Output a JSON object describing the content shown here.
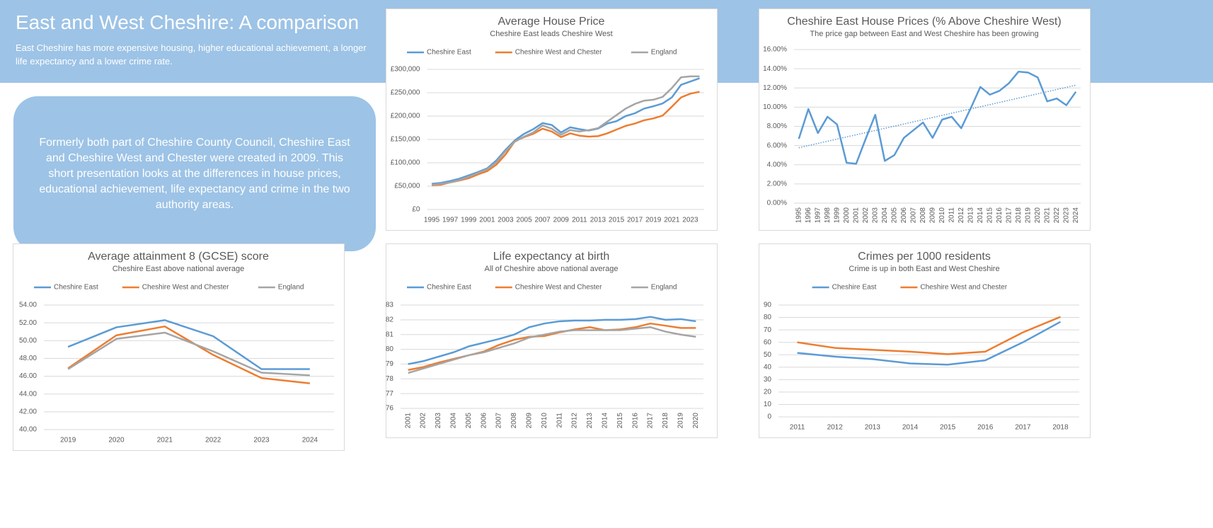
{
  "header": {
    "title": "East and West Cheshire: A comparison",
    "subtitle": "East Cheshire has more expensive housing, higher educational achievement, a longer life expectancy and a lower crime rate."
  },
  "intro": "Formerly both part of Cheshire County Council, Cheshire East and Cheshire West and Chester were created in 2009. This short presentation looks at the differences in house prices, educational achievement, life expectancy and crime in the two authority areas.",
  "chart_data": [
    {
      "type": "line",
      "title": "Average House Price",
      "subtitle": "Cheshire East leads Cheshire West",
      "legend": "top",
      "grid": true,
      "x": [
        1995,
        1996,
        1997,
        1998,
        1999,
        2000,
        2001,
        2002,
        2003,
        2004,
        2005,
        2006,
        2007,
        2008,
        2009,
        2010,
        2011,
        2012,
        2013,
        2014,
        2015,
        2016,
        2017,
        2018,
        2019,
        2020,
        2021,
        2022,
        2023,
        2024
      ],
      "xlim": [
        1994.5,
        2024.5
      ],
      "xticks": [
        1995,
        1997,
        1999,
        2001,
        2003,
        2005,
        2007,
        2009,
        2011,
        2013,
        2015,
        2017,
        2019,
        2021,
        2023
      ],
      "ylim": [
        0,
        300000
      ],
      "yticks": [
        {
          "value": 0,
          "label": "£0"
        },
        {
          "value": 50000,
          "label": "£50,000"
        },
        {
          "value": 100000,
          "label": "£100,000"
        },
        {
          "value": 150000,
          "label": "£150,000"
        },
        {
          "value": 200000,
          "label": "£200,000"
        },
        {
          "value": 250000,
          "label": "£250,000"
        },
        {
          "value": 300000,
          "label": "£300,000"
        }
      ],
      "series": [
        {
          "name": "Cheshire East",
          "color": "#5b9bd5",
          "values": [
            55000,
            57000,
            61000,
            66000,
            73000,
            80000,
            88000,
            105000,
            128000,
            148000,
            162000,
            172000,
            185000,
            181000,
            165000,
            176000,
            172000,
            169000,
            173000,
            184000,
            189000,
            200000,
            206000,
            216000,
            221000,
            227000,
            240000,
            267000,
            274000,
            281000
          ]
        },
        {
          "name": "Cheshire West and Chester",
          "color": "#ed7d31",
          "values": [
            52000,
            53000,
            58000,
            62000,
            67000,
            75000,
            82000,
            96000,
            118000,
            146000,
            155000,
            162000,
            173000,
            167000,
            155000,
            163000,
            158000,
            156000,
            157000,
            163000,
            171000,
            179000,
            184000,
            191000,
            195000,
            201000,
            220000,
            240000,
            248000,
            252000
          ]
        },
        {
          "name": "England",
          "color": "#a5a5a5",
          "values": [
            53000,
            55000,
            58000,
            63000,
            70000,
            78000,
            86000,
            101000,
            125000,
            145000,
            156000,
            165000,
            180000,
            173000,
            160000,
            170000,
            167000,
            170000,
            174000,
            188000,
            202000,
            216000,
            226000,
            233000,
            235000,
            241000,
            260000,
            283000,
            285000,
            285000
          ]
        }
      ]
    },
    {
      "type": "line",
      "title": "Cheshire East House Prices (% Above Cheshire West)",
      "subtitle": "The price gap between East and West Cheshire has been growing",
      "grid": true,
      "trendline": true,
      "color": "#5b9bd5",
      "x": [
        1995,
        1996,
        1997,
        1998,
        1999,
        2000,
        2001,
        2002,
        2003,
        2004,
        2005,
        2006,
        2007,
        2008,
        2009,
        2010,
        2011,
        2012,
        2013,
        2014,
        2015,
        2016,
        2017,
        2018,
        2019,
        2020,
        2021,
        2022,
        2023,
        2024
      ],
      "xlim": [
        1994.5,
        2024.5
      ],
      "xticks": [
        1995,
        1996,
        1997,
        1998,
        1999,
        2000,
        2001,
        2002,
        2003,
        2004,
        2005,
        2006,
        2007,
        2008,
        2009,
        2010,
        2011,
        2012,
        2013,
        2014,
        2015,
        2016,
        2017,
        2018,
        2019,
        2020,
        2021,
        2022,
        2023,
        2024
      ],
      "ylim": [
        0,
        16
      ],
      "yticks": [
        {
          "value": 0,
          "label": "0.00%"
        },
        {
          "value": 2,
          "label": "2.00%"
        },
        {
          "value": 4,
          "label": "4.00%"
        },
        {
          "value": 6,
          "label": "6.00%"
        },
        {
          "value": 8,
          "label": "8.00%"
        },
        {
          "value": 10,
          "label": "10.00%"
        },
        {
          "value": 12,
          "label": "12.00%"
        },
        {
          "value": 14,
          "label": "14.00%"
        },
        {
          "value": 16,
          "label": "16.00%"
        }
      ],
      "values": [
        6.7,
        9.8,
        7.3,
        9.0,
        8.2,
        4.2,
        4.1,
        6.7,
        9.2,
        4.4,
        5.0,
        6.8,
        7.6,
        8.4,
        6.8,
        8.7,
        9.0,
        7.8,
        9.9,
        12.1,
        11.3,
        11.7,
        12.5,
        13.7,
        13.6,
        13.1,
        10.6,
        10.9,
        10.2,
        11.6
      ]
    },
    {
      "type": "line",
      "title": "Average attainment 8 (GCSE) score",
      "subtitle": "Cheshire East above national average",
      "legend": "top",
      "grid": true,
      "x": [
        2019,
        2020,
        2021,
        2022,
        2023,
        2024
      ],
      "xlim": [
        2018.5,
        2024.5
      ],
      "xticks": [
        2019,
        2020,
        2021,
        2022,
        2023,
        2024
      ],
      "ylim": [
        40,
        54
      ],
      "yticks": [
        {
          "value": 40,
          "label": "40.00"
        },
        {
          "value": 42,
          "label": "42.00"
        },
        {
          "value": 44,
          "label": "44.00"
        },
        {
          "value": 46,
          "label": "46.00"
        },
        {
          "value": 48,
          "label": "48.00"
        },
        {
          "value": 50,
          "label": "50.00"
        },
        {
          "value": 52,
          "label": "52.00"
        },
        {
          "value": 54,
          "label": "54.00"
        }
      ],
      "series": [
        {
          "name": "Cheshire East",
          "color": "#5b9bd5",
          "values": [
            49.3,
            51.5,
            52.3,
            50.5,
            46.8,
            46.8
          ]
        },
        {
          "name": "Cheshire West and Chester",
          "color": "#ed7d31",
          "values": [
            46.9,
            50.6,
            51.6,
            48.4,
            45.8,
            45.2
          ]
        },
        {
          "name": "England",
          "color": "#a5a5a5",
          "values": [
            46.8,
            50.2,
            50.9,
            48.8,
            46.4,
            46.1
          ]
        }
      ]
    },
    {
      "type": "line",
      "title": "Life expectancy at birth",
      "subtitle": "All of Cheshire above national average",
      "legend": "top",
      "grid": true,
      "x": [
        2001,
        2002,
        2003,
        2004,
        2005,
        2006,
        2007,
        2008,
        2009,
        2010,
        2011,
        2012,
        2013,
        2014,
        2015,
        2016,
        2017,
        2018,
        2019,
        2020
      ],
      "xlim": [
        2000.5,
        2020.5
      ],
      "xticks": [
        2001,
        2002,
        2003,
        2004,
        2005,
        2006,
        2007,
        2008,
        2009,
        2010,
        2011,
        2012,
        2013,
        2014,
        2015,
        2016,
        2017,
        2018,
        2019,
        2020
      ],
      "ylim": [
        76,
        83
      ],
      "yticks": [
        76,
        77,
        78,
        79,
        80,
        81,
        82,
        83
      ],
      "series": [
        {
          "name": "Cheshire East",
          "color": "#5b9bd5",
          "values": [
            79.0,
            79.2,
            79.5,
            79.8,
            80.2,
            80.45,
            80.7,
            81.0,
            81.5,
            81.75,
            81.9,
            81.95,
            81.95,
            82.0,
            82.0,
            82.05,
            82.2,
            82.0,
            82.05,
            81.9
          ]
        },
        {
          "name": "Cheshire West and Chester",
          "color": "#ed7d31",
          "values": [
            78.6,
            78.8,
            79.1,
            79.35,
            79.6,
            79.85,
            80.3,
            80.65,
            80.85,
            80.9,
            81.15,
            81.35,
            81.5,
            81.3,
            81.35,
            81.5,
            81.75,
            81.6,
            81.45,
            81.45
          ]
        },
        {
          "name": "England",
          "color": "#a5a5a5",
          "values": [
            78.4,
            78.7,
            79.0,
            79.3,
            79.6,
            79.8,
            80.1,
            80.4,
            80.8,
            81.0,
            81.2,
            81.3,
            81.3,
            81.3,
            81.3,
            81.4,
            81.5,
            81.2,
            81.0,
            80.85
          ]
        }
      ]
    },
    {
      "type": "line",
      "title": "Crimes per 1000 residents",
      "subtitle": "Crime is up in both East and West Cheshire",
      "legend": "top",
      "grid": true,
      "x": [
        2011,
        2012,
        2013,
        2014,
        2015,
        2016,
        2017,
        2018
      ],
      "xlim": [
        2010.5,
        2018.5
      ],
      "xticks": [
        2011,
        2012,
        2013,
        2014,
        2015,
        2016,
        2017,
        2018
      ],
      "ylim": [
        0,
        90
      ],
      "yticks": [
        0,
        10,
        20,
        30,
        40,
        50,
        60,
        70,
        80,
        90
      ],
      "series": [
        {
          "name": "Cheshire East",
          "color": "#5b9bd5",
          "values": [
            51.5,
            48.5,
            46.5,
            43,
            42,
            45.5,
            60,
            76.5
          ]
        },
        {
          "name": "Cheshire West and Chester",
          "color": "#ed7d31",
          "values": [
            60,
            55.5,
            54,
            52.5,
            50.5,
            52.5,
            68,
            80.5
          ]
        }
      ]
    }
  ]
}
